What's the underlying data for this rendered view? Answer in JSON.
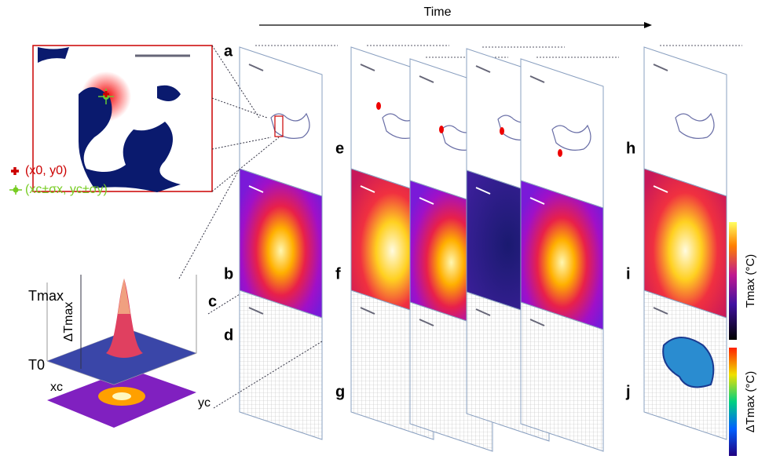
{
  "time_label": "Time",
  "panels": [
    "a",
    "b",
    "c",
    "d",
    "e",
    "f",
    "g",
    "h",
    "i",
    "j"
  ],
  "legend": {
    "peak": "(x0, y0)",
    "centroid": "(xc±σx, yc±σy)"
  },
  "plot3d": {
    "t_max": "Tmax",
    "t_0": "T0",
    "delta_t_max": "ΔTmax",
    "x_c": "xc",
    "y_c": "yc"
  },
  "colorbars": {
    "t_max": "Tmax (°C)",
    "delta_t_max": "ΔTmax (°C)"
  }
}
